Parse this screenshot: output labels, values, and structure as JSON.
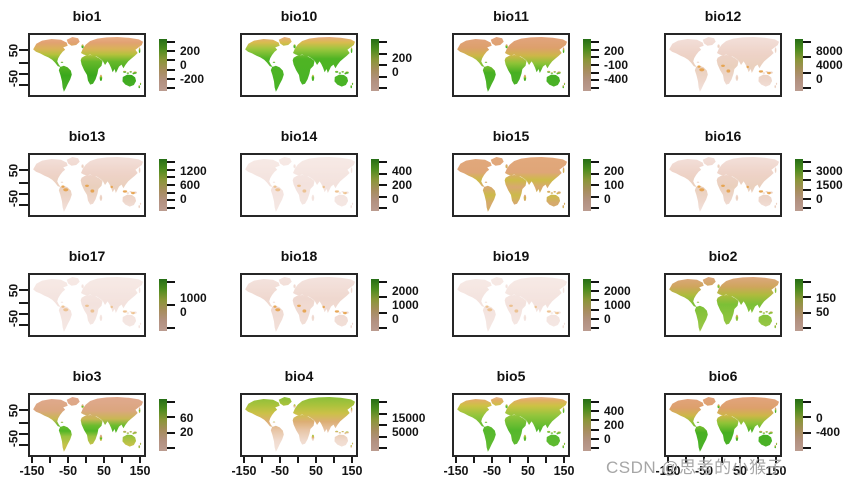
{
  "watermark": "CSDN @思考的小猴子",
  "axes": {
    "x_tick_labels": [
      "-150",
      "-50",
      "50",
      "150"
    ],
    "y_tick_labels": [
      "50",
      "-50"
    ]
  },
  "colors": {
    "background": "#ffffff",
    "map_border": "#262626",
    "tick": "#1a1a1a",
    "text": "#141414",
    "watermark": "#a6a6a6",
    "spot": "#e59a38",
    "legend_gradient": [
      "#256e15",
      "#4e8c1e",
      "#8a9638",
      "#a68d5c",
      "#b29180",
      "#bb9c90"
    ]
  },
  "map_styles": {
    "temp_a": {
      "spots": null,
      "stops": [
        [
          0,
          "#e8ae85"
        ],
        [
          10,
          "#e2a172"
        ],
        [
          22,
          "#d9b357"
        ],
        [
          32,
          "#b5c23c"
        ],
        [
          45,
          "#66b82a"
        ],
        [
          70,
          "#3aa81c"
        ],
        [
          100,
          "#4cb22a"
        ]
      ]
    },
    "temp_b": {
      "spots": null,
      "stops": [
        [
          0,
          "#e2a47d"
        ],
        [
          20,
          "#dda06c"
        ],
        [
          34,
          "#cdb648"
        ],
        [
          48,
          "#8ec336"
        ],
        [
          65,
          "#47b022"
        ],
        [
          100,
          "#4cb22a"
        ]
      ]
    },
    "temp_green": {
      "spots": null,
      "stops": [
        [
          0,
          "#e5ab80"
        ],
        [
          10,
          "#d9bb4e"
        ],
        [
          22,
          "#9cc63e"
        ],
        [
          40,
          "#4fb424"
        ],
        [
          100,
          "#47b326"
        ]
      ]
    },
    "warm": {
      "spots": null,
      "stops": [
        [
          0,
          "#e7b896"
        ],
        [
          6,
          "#e0ad62"
        ],
        [
          16,
          "#ccc244"
        ],
        [
          34,
          "#92c53c"
        ],
        [
          60,
          "#55b82c"
        ],
        [
          100,
          "#63bb32"
        ]
      ]
    },
    "diurnal": {
      "spots": null,
      "stops": [
        [
          0,
          "#dca87e"
        ],
        [
          18,
          "#cfa55c"
        ],
        [
          32,
          "#b0ba3e"
        ],
        [
          50,
          "#7cc036"
        ],
        [
          75,
          "#8cc43e"
        ],
        [
          100,
          "#9fc84a"
        ]
      ]
    },
    "iso": {
      "spots": null,
      "stops": [
        [
          0,
          "#e0a98e"
        ],
        [
          25,
          "#dba67f"
        ],
        [
          40,
          "#c9b754"
        ],
        [
          52,
          "#6cbc2e"
        ],
        [
          62,
          "#52b626"
        ],
        [
          72,
          "#9ac23e"
        ],
        [
          88,
          "#c5c24a"
        ],
        [
          100,
          "#cdbd4e"
        ]
      ]
    },
    "seasonality": {
      "spots": null,
      "stops": [
        [
          0,
          "#8abf3a"
        ],
        [
          15,
          "#aac23c"
        ],
        [
          30,
          "#ccc148"
        ],
        [
          45,
          "#dcae74"
        ],
        [
          60,
          "#e7c4a4"
        ],
        [
          80,
          "#f0dbce"
        ],
        [
          100,
          "#f4e4dc"
        ]
      ]
    },
    "precip": {
      "spots": "strong",
      "stops": [
        [
          0,
          "#f3e0da"
        ],
        [
          30,
          "#eed3c8"
        ],
        [
          55,
          "#ead0bd"
        ],
        [
          80,
          "#eed7cc"
        ],
        [
          100,
          "#f3e2dc"
        ]
      ]
    },
    "precip_light": {
      "spots": "strong",
      "stops": [
        [
          0,
          "#f4e3de"
        ],
        [
          40,
          "#efd8cf"
        ],
        [
          100,
          "#f2e0d9"
        ]
      ]
    },
    "pale": {
      "spots": "light",
      "stops": [
        [
          0,
          "#f7eae6"
        ],
        [
          50,
          "#f3e2dd"
        ],
        [
          100,
          "#f5e8e4"
        ]
      ]
    },
    "arid": {
      "spots": null,
      "stops": [
        [
          0,
          "#e2a87c"
        ],
        [
          28,
          "#dfa678"
        ],
        [
          42,
          "#cdbb48"
        ],
        [
          55,
          "#d8a870"
        ],
        [
          70,
          "#ccba4a"
        ],
        [
          85,
          "#d6a96e"
        ],
        [
          100,
          "#d2ae62"
        ]
      ]
    }
  },
  "panels": [
    {
      "title": "bio1",
      "legend": [
        "200",
        "0",
        "-200"
      ],
      "comb": 6,
      "map": "temp_a"
    },
    {
      "title": "bio10",
      "legend": [
        "200",
        "0"
      ],
      "comb": 5,
      "map": "temp_green"
    },
    {
      "title": "bio11",
      "legend": [
        "200",
        "-100",
        "-400"
      ],
      "comb": 7,
      "map": "temp_b"
    },
    {
      "title": "bio12",
      "legend": [
        "8000",
        "4000",
        "0"
      ],
      "comb": 4,
      "map": "precip"
    },
    {
      "title": "bio13",
      "legend": [
        "1200",
        "600",
        "0"
      ],
      "comb": 7,
      "map": "precip"
    },
    {
      "title": "bio14",
      "legend": [
        "400",
        "200",
        "0"
      ],
      "comb": 5,
      "map": "pale"
    },
    {
      "title": "bio15",
      "legend": [
        "200",
        "100",
        "0"
      ],
      "comb": 5,
      "map": "arid"
    },
    {
      "title": "bio16",
      "legend": [
        "3000",
        "1500",
        "0"
      ],
      "comb": 6,
      "map": "precip"
    },
    {
      "title": "bio17",
      "legend": [
        "1000",
        "0"
      ],
      "comb": 3,
      "map": "pale"
    },
    {
      "title": "bio18",
      "legend": [
        "2000",
        "1000",
        "0"
      ],
      "comb": 4,
      "map": "precip_light"
    },
    {
      "title": "bio19",
      "legend": [
        "2000",
        "1000",
        "0"
      ],
      "comb": 6,
      "map": "pale"
    },
    {
      "title": "bio2",
      "legend": [
        "150",
        "50"
      ],
      "comb": 4,
      "map": "diurnal"
    },
    {
      "title": "bio3",
      "legend": [
        "60",
        "20"
      ],
      "comb": 4,
      "map": "iso"
    },
    {
      "title": "bio4",
      "legend": [
        "15000",
        "5000"
      ],
      "comb": 5,
      "map": "seasonality"
    },
    {
      "title": "bio5",
      "legend": [
        "400",
        "200",
        "0"
      ],
      "comb": 6,
      "map": "warm"
    },
    {
      "title": "bio6",
      "legend": [
        "0",
        "-400"
      ],
      "comb": 4,
      "map": "temp_b"
    }
  ],
  "chart_data": {
    "type": "heatmap",
    "layout": "4x4 grid of world raster maps (R bioclim plot), legend color ramp green(high) to pink(low)",
    "x_range": [
      -180,
      180
    ],
    "y_range": [
      -60,
      90
    ],
    "x_ticks": [
      -150,
      -50,
      50,
      150
    ],
    "y_ticks": [
      50,
      -50
    ],
    "panels": [
      {
        "title": "bio1",
        "legend_values": [
          200,
          0,
          -200
        ]
      },
      {
        "title": "bio10",
        "legend_values": [
          200,
          0
        ]
      },
      {
        "title": "bio11",
        "legend_values": [
          200,
          -100,
          -400
        ]
      },
      {
        "title": "bio12",
        "legend_values": [
          8000,
          4000,
          0
        ]
      },
      {
        "title": "bio13",
        "legend_values": [
          1200,
          600,
          0
        ]
      },
      {
        "title": "bio14",
        "legend_values": [
          400,
          200,
          0
        ]
      },
      {
        "title": "bio15",
        "legend_values": [
          200,
          100,
          0
        ]
      },
      {
        "title": "bio16",
        "legend_values": [
          3000,
          1500,
          0
        ]
      },
      {
        "title": "bio17",
        "legend_values": [
          1000,
          0
        ]
      },
      {
        "title": "bio18",
        "legend_values": [
          2000,
          1000,
          0
        ]
      },
      {
        "title": "bio19",
        "legend_values": [
          2000,
          1000,
          0
        ]
      },
      {
        "title": "bio2",
        "legend_values": [
          150,
          50
        ]
      },
      {
        "title": "bio3",
        "legend_values": [
          60,
          20
        ]
      },
      {
        "title": "bio4",
        "legend_values": [
          15000,
          5000
        ]
      },
      {
        "title": "bio5",
        "legend_values": [
          400,
          200,
          0
        ]
      },
      {
        "title": "bio6",
        "legend_values": [
          0,
          -400
        ]
      }
    ]
  }
}
